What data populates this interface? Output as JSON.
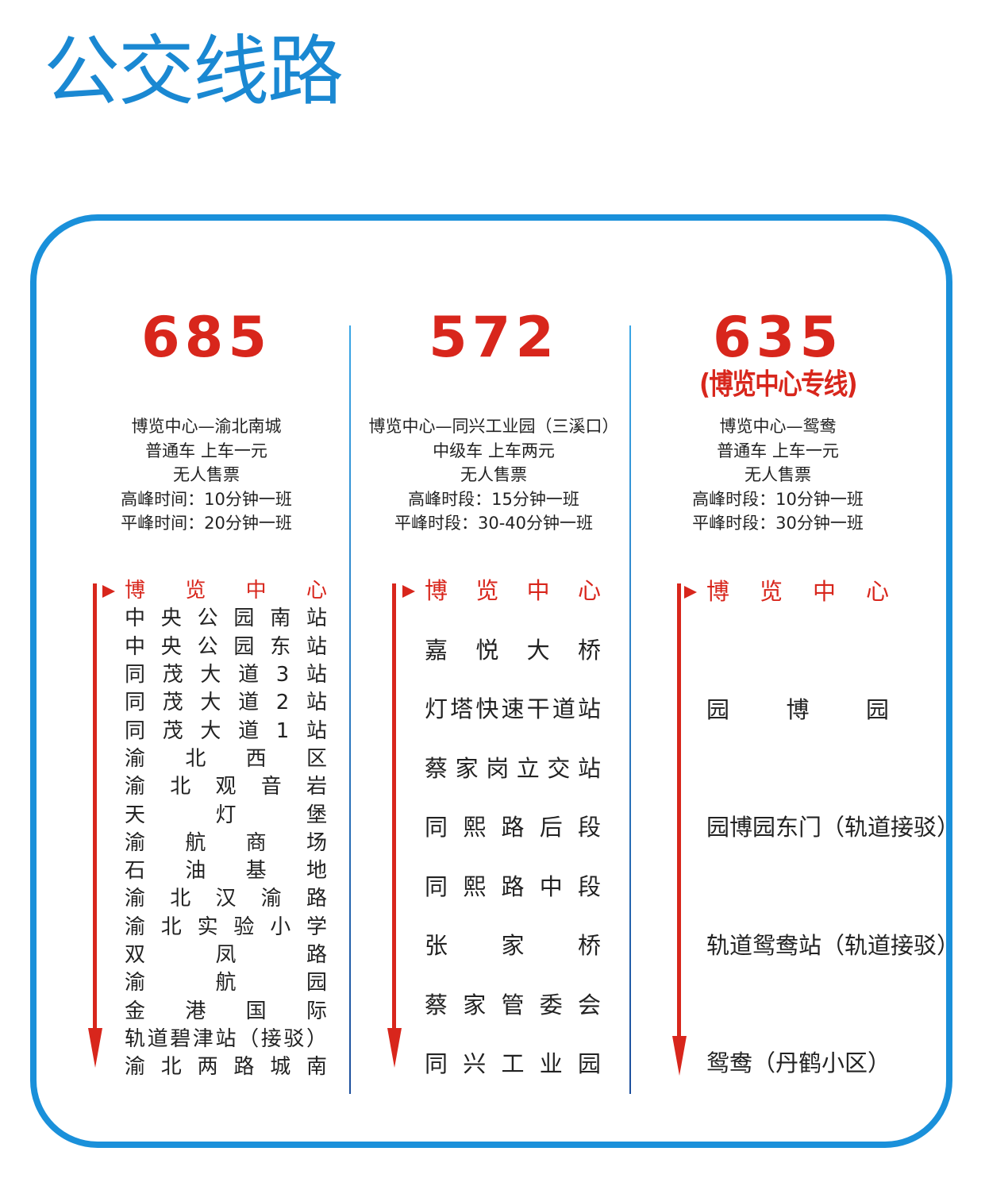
{
  "title": "公交线路",
  "colors": {
    "title": "#1a88d2",
    "frame": "#1a90da",
    "route_number": "#d8261c",
    "arrow": "#d8261c"
  },
  "routes": [
    {
      "number": "685",
      "subtitle": "",
      "info": [
        "博览中心—渝北南城",
        "普通车 上车一元",
        "无人售票",
        "高峰时间：10分钟一班",
        "平峰时间：20分钟一班"
      ],
      "stops": [
        "博览中心",
        "中央公园南站",
        "中央公园东站",
        "同茂大道3站",
        "同茂大道2站",
        "同茂大道1站",
        "渝北西区",
        "渝北观音岩",
        "天灯堡",
        "渝航商场",
        "石油基地",
        "渝北汉渝路",
        "渝北实验小学",
        "双凤路",
        "渝航园",
        "金港国际",
        "轨道碧津站（接驳）",
        "渝北两路城南"
      ]
    },
    {
      "number": "572",
      "subtitle": "",
      "info": [
        "博览中心—同兴工业园（三溪口）",
        "中级车 上车两元",
        "无人售票",
        "高峰时段：15分钟一班",
        "平峰时段：30-40分钟一班"
      ],
      "stops": [
        "博览中心",
        "嘉悦大桥",
        "灯塔快速干道站",
        "蔡家岗立交站",
        "同熙路后段",
        "同熙路中段",
        "张家桥",
        "蔡家管委会",
        "同兴工业园"
      ]
    },
    {
      "number": "635",
      "subtitle": "(博览中心专线)",
      "info": [
        "博览中心—鸳鸯",
        "普通车 上车一元",
        "无人售票",
        "高峰时段：10分钟一班",
        "平峰时段：30分钟一班"
      ],
      "stops": [
        "博览中心",
        "园博园",
        "园博园东门（轨道接驳）",
        "轨道鸳鸯站（轨道接驳）",
        "鸳鸯（丹鹤小区）"
      ]
    }
  ]
}
